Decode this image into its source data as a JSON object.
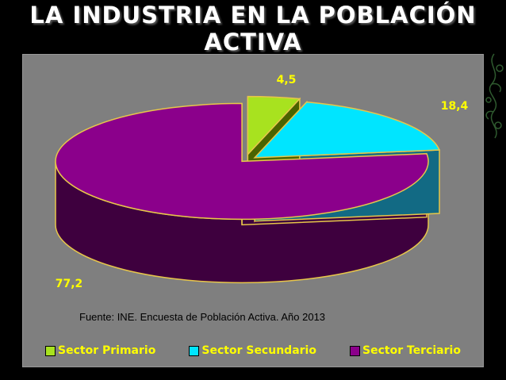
{
  "title_line1": "LA INDUSTRIA EN LA POBLACIÓN",
  "title_line2": "ACTIVA",
  "source": "Fuente: INE. Encuesta de Población Activa. Año 2013",
  "colors": {
    "background": "#000000",
    "plot_area": "#7f7f7f",
    "label": "#ffff00"
  },
  "chart_data": {
    "type": "pie",
    "title": "",
    "style": "3d-exploded",
    "legend_position": "bottom",
    "series": [
      {
        "name": "Sector Primario",
        "value": 4.5,
        "label": "4,5",
        "color": "#a8e21f",
        "side_color": "#4a6300"
      },
      {
        "name": "Sector Secundario",
        "value": 18.4,
        "label": "18,4",
        "color": "#00e5ff",
        "side_color": "#126a84"
      },
      {
        "name": "Sector Terciario",
        "value": 77.2,
        "label": "77,2",
        "color": "#8b008b",
        "side_color": "#3e003e"
      }
    ]
  }
}
